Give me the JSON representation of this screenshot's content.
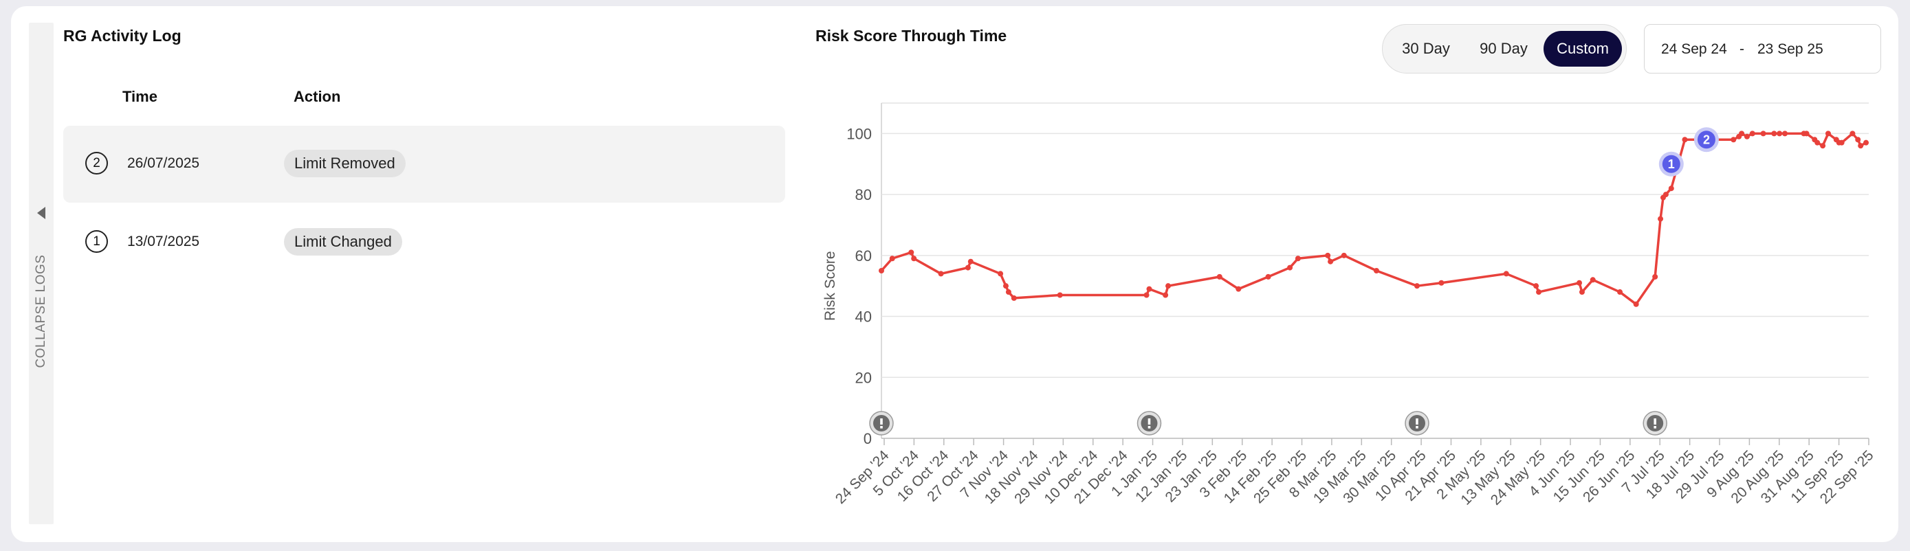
{
  "sidebar": {
    "collapse_label": "COLLAPSE LOGS"
  },
  "activity_log": {
    "title": "RG Activity Log",
    "columns": {
      "time": "Time",
      "action": "Action"
    },
    "rows": [
      {
        "index": "2",
        "time": "26/07/2025",
        "action": "Limit Removed"
      },
      {
        "index": "1",
        "time": "13/07/2025",
        "action": "Limit Changed"
      }
    ]
  },
  "risk_chart": {
    "title": "Risk Score Through Time",
    "range_options": [
      "30 Day",
      "90 Day",
      "Custom"
    ],
    "selected_range": "Custom",
    "date_from": "24 Sep 24",
    "date_separator": "-",
    "date_to": "23 Sep 25"
  },
  "colors": {
    "line": "#e8413b",
    "active_toggle": "#0e0b3d",
    "marker": "#5a5ce8",
    "alert": "#6b6b6b"
  },
  "chart_data": {
    "type": "line",
    "title": "Risk Score Through Time",
    "xlabel": "",
    "ylabel": "Risk Score",
    "ylim": [
      0,
      110
    ],
    "yticks": [
      0,
      20,
      40,
      60,
      80,
      100
    ],
    "x_tick_labels": [
      "24 Sep '24",
      "5 Oct '24",
      "16 Oct '24",
      "27 Oct '24",
      "7 Nov '24",
      "18 Nov '24",
      "29 Nov '24",
      "10 Dec '24",
      "21 Dec '24",
      "1 Jan '25",
      "12 Jan '25",
      "23 Jan '25",
      "3 Feb '25",
      "14 Feb '25",
      "25 Feb '25",
      "8 Mar '25",
      "19 Mar '25",
      "30 Mar '25",
      "10 Apr '25",
      "21 Apr '25",
      "2 May '25",
      "13 May '25",
      "24 May '25",
      "4 Jun '25",
      "15 Jun '25",
      "26 Jun '25",
      "7 Jul '25",
      "18 Jul '25",
      "29 Jul '25",
      "9 Aug '25",
      "20 Aug '25",
      "31 Aug '25",
      "11 Sep '25",
      "22 Sep '25"
    ],
    "grid": true,
    "series": [
      {
        "x": [
          "2024-09-24",
          "2024-09-28",
          "2024-10-05",
          "2024-10-06",
          "2024-10-16",
          "2024-10-26",
          "2024-10-27",
          "2024-11-07",
          "2024-11-09",
          "2024-11-10",
          "2024-11-12",
          "2024-11-29",
          "2024-12-31",
          "2025-01-01",
          "2025-01-07",
          "2025-01-08",
          "2025-01-27",
          "2025-02-03",
          "2025-02-14",
          "2025-02-22",
          "2025-02-25",
          "2025-03-08",
          "2025-03-09",
          "2025-03-14",
          "2025-03-26",
          "2025-04-10",
          "2025-04-19",
          "2025-05-13",
          "2025-05-24",
          "2025-05-25",
          "2025-06-09",
          "2025-06-10",
          "2025-06-14",
          "2025-06-24",
          "2025-06-30",
          "2025-07-07",
          "2025-07-09",
          "2025-07-10",
          "2025-07-11",
          "2025-07-13",
          "2025-07-18",
          "2025-07-26",
          "2025-08-05",
          "2025-08-07",
          "2025-08-08",
          "2025-08-10",
          "2025-08-12",
          "2025-08-16",
          "2025-08-20",
          "2025-08-22",
          "2025-08-24",
          "2025-08-31",
          "2025-09-01",
          "2025-09-04",
          "2025-09-05",
          "2025-09-07",
          "2025-09-09",
          "2025-09-12",
          "2025-09-13",
          "2025-09-14",
          "2025-09-18",
          "2025-09-20",
          "2025-09-21",
          "2025-09-23"
        ],
        "y": [
          55,
          59,
          61,
          59,
          54,
          56,
          58,
          54,
          50,
          48,
          46,
          47,
          47,
          49,
          47,
          50,
          53,
          49,
          53,
          56,
          59,
          60,
          58,
          60,
          55,
          50,
          51,
          54,
          50,
          48,
          51,
          48,
          52,
          48,
          44,
          53,
          72,
          79,
          80,
          82,
          98,
          98,
          98,
          99,
          100,
          99,
          100,
          100,
          100,
          100,
          100,
          100,
          100,
          98,
          97,
          96,
          100,
          98,
          97,
          97,
          100,
          98,
          96,
          97
        ]
      }
    ],
    "event_markers": [
      {
        "label": "1",
        "x": "2025-07-13",
        "y": 90
      },
      {
        "label": "2",
        "x": "2025-07-26",
        "y": 98
      }
    ],
    "alert_markers": [
      "2024-09-24",
      "2025-01-01",
      "2025-04-10",
      "2025-07-07"
    ]
  }
}
